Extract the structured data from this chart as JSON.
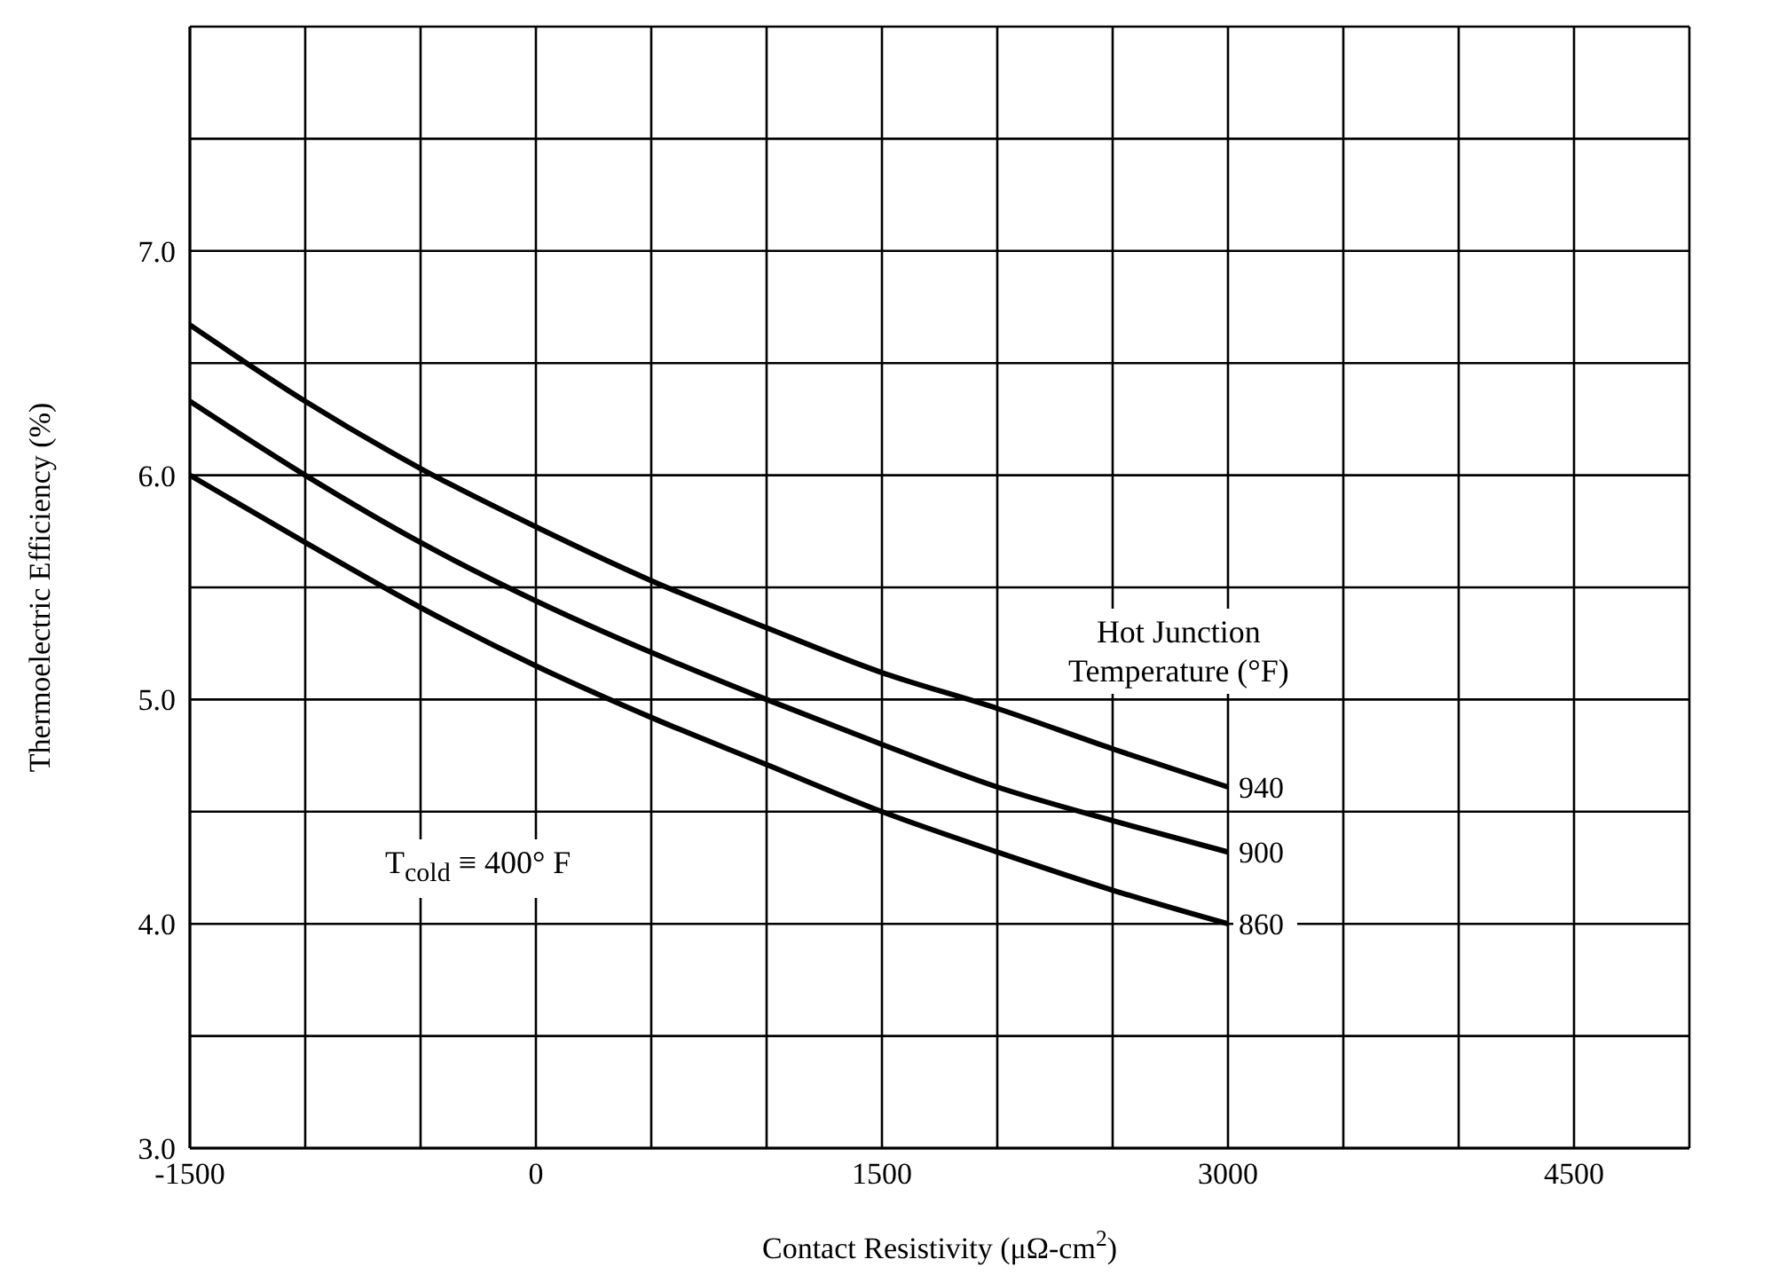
{
  "chart_data": {
    "type": "line",
    "xlabel": "Contact Resistivity (μΩ-cm$^{2}$)",
    "ylabel": "Thermoelectric Efficiency (%)",
    "x": [
      -1500,
      -1000,
      -500,
      0,
      500,
      1000,
      1500,
      2000,
      2500,
      3000
    ],
    "series": [
      {
        "name": "940",
        "color": "#000000",
        "values": [
          6.67,
          6.33,
          6.03,
          5.77,
          5.53,
          5.32,
          5.12,
          4.96,
          4.78,
          4.61
        ]
      },
      {
        "name": "900",
        "color": "#000000",
        "values": [
          6.33,
          6.0,
          5.7,
          5.44,
          5.21,
          5.0,
          4.8,
          4.61,
          4.46,
          4.32
        ]
      },
      {
        "name": "860",
        "color": "#000000",
        "values": [
          6.0,
          5.7,
          5.41,
          5.15,
          4.92,
          4.71,
          4.5,
          4.32,
          4.15,
          4.0
        ]
      }
    ],
    "xlim": [
      -1500,
      5000
    ],
    "xticks": [
      -1500,
      {
        "value": -1000,
        "label": null
      },
      {
        "value": -500,
        "label": null
      },
      0,
      {
        "value": 500,
        "label": null
      },
      {
        "value": 1000,
        "label": null
      },
      1500,
      {
        "value": 2000,
        "label": null
      },
      {
        "value": 2500,
        "label": null
      },
      3000,
      {
        "value": 3500,
        "label": null
      },
      {
        "value": 4000,
        "label": null
      },
      4500,
      {
        "value": 5000,
        "label": null
      }
    ],
    "ylim": [
      3,
      8
    ],
    "yticks": [
      {
        "value": 3,
        "label": "3.0"
      },
      {
        "value": 3.5,
        "label": null
      },
      {
        "value": 4,
        "label": "4.0"
      },
      {
        "value": 4.5,
        "label": null
      },
      {
        "value": 5,
        "label": "5.0"
      },
      {
        "value": 5.5,
        "label": null
      },
      {
        "value": 6,
        "label": "6.0"
      },
      {
        "value": 6.5,
        "label": null
      },
      {
        "value": 7,
        "label": "7.0"
      },
      {
        "value": 7.5,
        "label": null
      },
      {
        "value": 8,
        "label": null
      }
    ],
    "grid": true,
    "marker": "none",
    "line_style": "solid",
    "annotations": [
      "Hot Junction\nTemperature (°F)",
      "T$_{cold}$ ≡ 400° F"
    ]
  }
}
